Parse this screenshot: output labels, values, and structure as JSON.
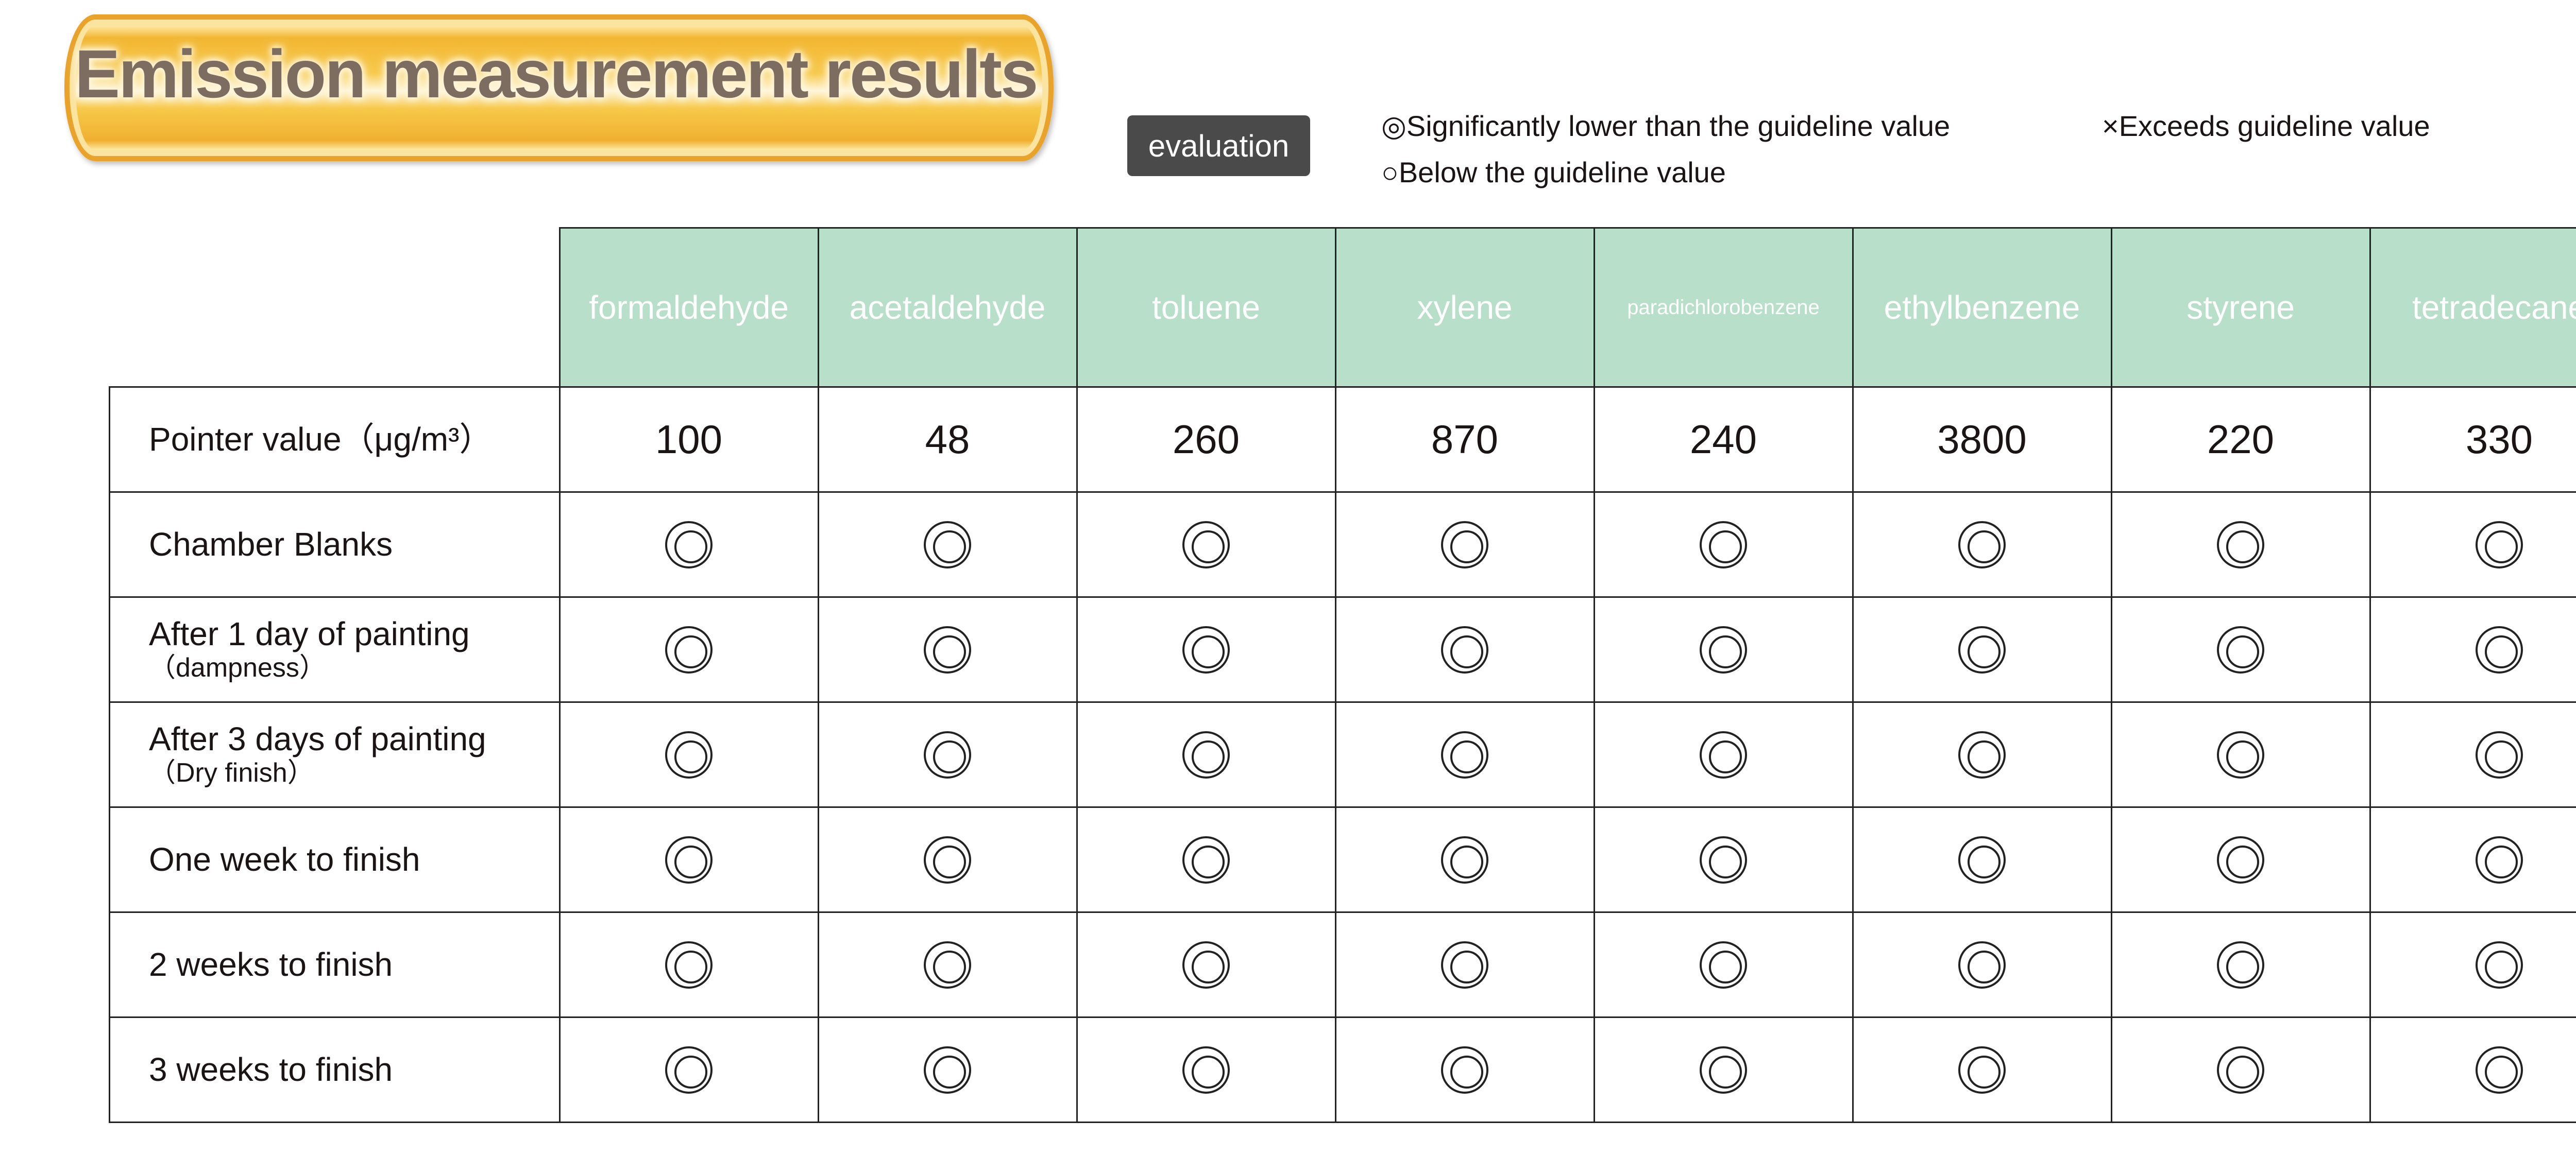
{
  "title": "Emission measurement results",
  "legend": {
    "badge": "evaluation",
    "significantly_lower": "◎Significantly lower than the guideline value",
    "exceeds": "×Exceeds guideline value",
    "below": "○Below the guideline value"
  },
  "colors": {
    "header_bg": "#b8dfc9",
    "badge_bg": "#4a4a4a",
    "title_text": "#7d6c60"
  },
  "table": {
    "columns": [
      "formaldehyde",
      "acetaldehyde",
      "toluene",
      "xylene",
      "paradichlorobenzene",
      "ethylbenzene",
      "styrene",
      "tetradecane"
    ],
    "pointer_label": "Pointer value（μg/m³）",
    "pointer_values": [
      "100",
      "48",
      "260",
      "870",
      "240",
      "3800",
      "220",
      "330"
    ],
    "rows": [
      {
        "label": "Chamber Blanks",
        "sub": "",
        "marks": [
          "◎",
          "◎",
          "◎",
          "◎",
          "◎",
          "◎",
          "◎",
          "◎"
        ]
      },
      {
        "label": "After 1 day of painting",
        "sub": "（dampness）",
        "marks": [
          "◎",
          "◎",
          "◎",
          "◎",
          "◎",
          "◎",
          "◎",
          "◎"
        ]
      },
      {
        "label": "After 3 days of painting",
        "sub": "（Dry finish）",
        "marks": [
          "◎",
          "◎",
          "◎",
          "◎",
          "◎",
          "◎",
          "◎",
          "◎"
        ]
      },
      {
        "label": "One week to finish",
        "sub": "",
        "marks": [
          "◎",
          "◎",
          "◎",
          "◎",
          "◎",
          "◎",
          "◎",
          "◎"
        ]
      },
      {
        "label": "2 weeks to finish",
        "sub": "",
        "marks": [
          "◎",
          "◎",
          "◎",
          "◎",
          "◎",
          "◎",
          "◎",
          "◎"
        ]
      },
      {
        "label": "3 weeks to finish",
        "sub": "",
        "marks": [
          "◎",
          "◎",
          "◎",
          "◎",
          "◎",
          "◎",
          "◎",
          "◎"
        ]
      }
    ]
  }
}
